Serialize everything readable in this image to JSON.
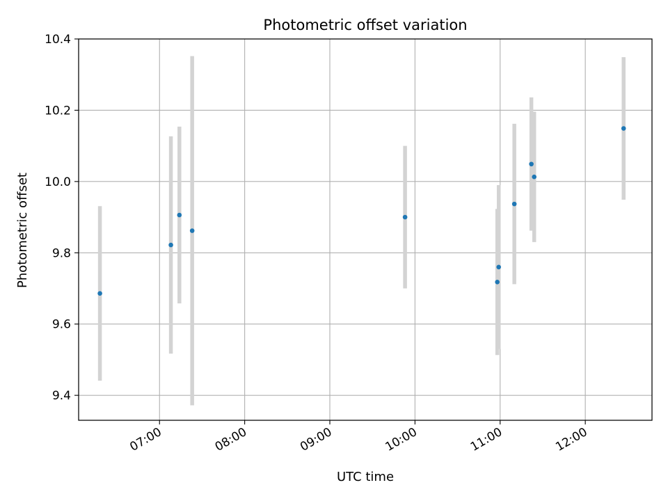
{
  "chart_data": {
    "type": "scatter",
    "title": "Photometric offset variation",
    "xlabel": "UTC time",
    "ylabel": "Photometric offset",
    "x_is_time": true,
    "xlim": [
      "06:03",
      "12:47"
    ],
    "ylim": [
      9.33,
      10.4
    ],
    "xticks": [
      "07:00",
      "08:00",
      "09:00",
      "10:00",
      "11:00",
      "12:00"
    ],
    "yticks": [
      9.4,
      9.6,
      9.8,
      10.0,
      10.2,
      10.4
    ],
    "ytick_labels": [
      "9.4",
      "9.6",
      "9.8",
      "10.0",
      "10.2",
      "10.4"
    ],
    "grid": true,
    "colors": {
      "points": "#1f77b4",
      "errorbars": "#d3d3d3",
      "grid": "#b0b0b0"
    },
    "points": [
      {
        "x": "06:18",
        "y": 9.686,
        "err": 0.245
      },
      {
        "x": "07:08",
        "y": 9.822,
        "err": 0.305
      },
      {
        "x": "07:14",
        "y": 9.906,
        "err": 0.248
      },
      {
        "x": "07:23",
        "y": 9.862,
        "err": 0.49
      },
      {
        "x": "09:53",
        "y": 9.9,
        "err": 0.2
      },
      {
        "x": "10:58",
        "y": 9.718,
        "err": 0.205
      },
      {
        "x": "10:59",
        "y": 9.76,
        "err": 0.23
      },
      {
        "x": "11:10",
        "y": 9.937,
        "err": 0.225
      },
      {
        "x": "11:22",
        "y": 10.049,
        "err": 0.187
      },
      {
        "x": "11:24",
        "y": 10.013,
        "err": 0.183
      },
      {
        "x": "12:27",
        "y": 10.149,
        "err": 0.2
      }
    ]
  }
}
